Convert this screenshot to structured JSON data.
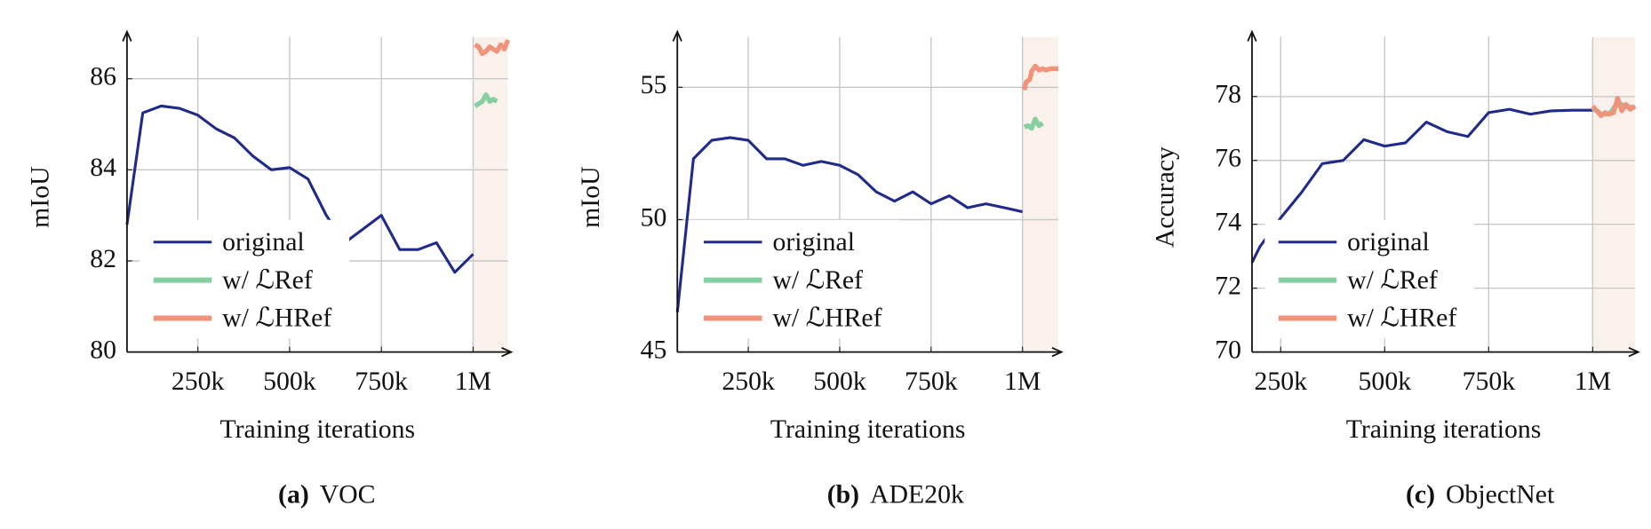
{
  "chart_data": [
    {
      "type": "line",
      "label": "(a)",
      "title": "VOC",
      "xlabel": "Training iterations",
      "ylabel": "mIoU",
      "xlim": [
        57000,
        1095000
      ],
      "ylim": [
        80,
        86.8
      ],
      "xticks": [
        {
          "value": 250000,
          "label": "250k"
        },
        {
          "value": 500000,
          "label": "500k"
        },
        {
          "value": 750000,
          "label": "750k"
        },
        {
          "value": 1000000,
          "label": "1M"
        }
      ],
      "yticks": [
        80,
        82,
        84,
        86
      ],
      "grid": true,
      "shade_from": 1000000,
      "shade_color": "#fbf1ec",
      "series": [
        {
          "name": "original",
          "color": "#1f2a8a",
          "x": [
            57000,
            100000,
            150000,
            200000,
            250000,
            300000,
            350000,
            400000,
            450000,
            500000,
            550000,
            600000,
            650000,
            700000,
            750000,
            800000,
            850000,
            900000,
            950000,
            1000000
          ],
          "values": [
            82.8,
            85.25,
            85.4,
            85.35,
            85.2,
            84.9,
            84.7,
            84.3,
            84.0,
            84.05,
            83.8,
            83.0,
            82.4,
            82.7,
            83.0,
            82.25,
            82.25,
            82.4,
            81.75,
            82.15
          ]
        },
        {
          "name": "w/ ℒRef",
          "color": "#86cfa0",
          "x": [
            1005000,
            1015000,
            1025000,
            1035000,
            1045000,
            1055000,
            1065000
          ],
          "values": [
            85.4,
            85.45,
            85.5,
            85.65,
            85.5,
            85.55,
            85.5
          ]
        },
        {
          "name": "w/ ℒHRef",
          "color": "#f0937a",
          "x": [
            1005000,
            1015000,
            1025000,
            1035000,
            1045000,
            1055000,
            1065000,
            1075000,
            1085000,
            1095000
          ],
          "values": [
            86.75,
            86.7,
            86.55,
            86.6,
            86.7,
            86.65,
            86.6,
            86.75,
            86.65,
            86.85
          ]
        }
      ]
    },
    {
      "type": "line",
      "label": "(b)",
      "title": "ADE20k",
      "xlabel": "Training iterations",
      "ylabel": "mIoU",
      "xlim": [
        56000,
        1098000
      ],
      "ylim": [
        45,
        56.7
      ],
      "xticks": [
        {
          "value": 250000,
          "label": "250k"
        },
        {
          "value": 500000,
          "label": "500k"
        },
        {
          "value": 750000,
          "label": "750k"
        },
        {
          "value": 1000000,
          "label": "1M"
        }
      ],
      "yticks": [
        45,
        50,
        55
      ],
      "grid": true,
      "shade_from": 1000000,
      "shade_color": "#fbf1ec",
      "series": [
        {
          "name": "original",
          "color": "#1f2a8a",
          "x": [
            56000,
            100000,
            150000,
            200000,
            250000,
            300000,
            350000,
            400000,
            450000,
            500000,
            550000,
            600000,
            650000,
            700000,
            750000,
            800000,
            850000,
            900000,
            950000,
            1000000
          ],
          "values": [
            46.5,
            52.3,
            53.0,
            53.1,
            53.0,
            52.3,
            52.3,
            52.05,
            52.2,
            52.05,
            51.7,
            51.05,
            50.7,
            51.05,
            50.6,
            50.9,
            50.45,
            50.6,
            50.45,
            50.3
          ]
        },
        {
          "name": "w/ ℒRef",
          "color": "#86cfa0",
          "x": [
            1005000,
            1015000,
            1025000,
            1035000,
            1045000,
            1055000
          ],
          "values": [
            53.5,
            53.55,
            53.45,
            53.8,
            53.55,
            53.65
          ]
        },
        {
          "name": "w/ ℒHRef",
          "color": "#f0937a",
          "x": [
            1005000,
            1010000,
            1020000,
            1025000,
            1035000,
            1045000,
            1055000,
            1065000,
            1075000,
            1098000
          ],
          "values": [
            54.9,
            55.2,
            55.3,
            55.6,
            55.8,
            55.65,
            55.7,
            55.65,
            55.7,
            55.7
          ]
        }
      ]
    },
    {
      "type": "line",
      "label": "(c)",
      "title": "ObjectNet",
      "xlabel": "Training iterations",
      "ylabel": "Accuracy",
      "xlim": [
        181000,
        1102000
      ],
      "ylim": [
        70,
        79.7
      ],
      "xticks": [
        {
          "value": 250000,
          "label": "250k"
        },
        {
          "value": 500000,
          "label": "500k"
        },
        {
          "value": 750000,
          "label": "750k"
        },
        {
          "value": 1000000,
          "label": "1M"
        }
      ],
      "yticks": [
        70,
        72,
        74,
        76,
        78
      ],
      "grid": true,
      "shade_from": 1000000,
      "shade_color": "#fbf1ec",
      "series": [
        {
          "name": "original",
          "color": "#1f2a8a",
          "x": [
            181000,
            200000,
            250000,
            300000,
            350000,
            400000,
            450000,
            500000,
            550000,
            600000,
            650000,
            700000,
            750000,
            800000,
            850000,
            900000,
            950000,
            1000000
          ],
          "values": [
            72.8,
            73.3,
            74.2,
            75.0,
            75.9,
            76.0,
            76.65,
            76.45,
            76.55,
            77.2,
            76.9,
            76.75,
            77.5,
            77.6,
            77.45,
            77.55,
            77.57,
            77.57
          ]
        },
        {
          "name": "w/ ℒRef",
          "color": "#86cfa0",
          "x": [
            1000000,
            1020000,
            1040000,
            1060000,
            1080000,
            1100000
          ],
          "values": [
            77.65,
            77.45,
            77.45,
            77.8,
            77.7,
            77.65
          ]
        },
        {
          "name": "w/ ℒHRef",
          "color": "#f0937a",
          "x": [
            1000000,
            1010000,
            1020000,
            1030000,
            1040000,
            1050000,
            1060000,
            1070000,
            1080000,
            1090000,
            1102000
          ],
          "values": [
            77.7,
            77.55,
            77.4,
            77.5,
            77.45,
            77.5,
            77.95,
            77.55,
            77.75,
            77.6,
            77.7
          ]
        }
      ]
    }
  ]
}
